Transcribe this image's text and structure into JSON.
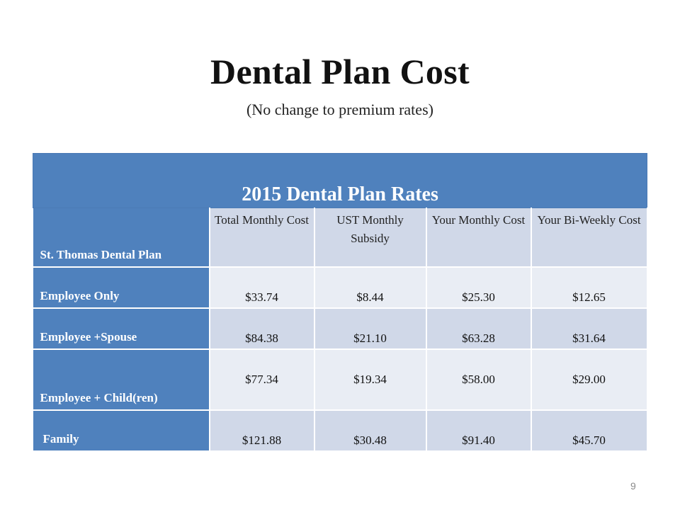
{
  "slide": {
    "title": "Dental Plan Cost",
    "subtitle": "(No change to premium rates)",
    "page_number": "9"
  },
  "table": {
    "banner": "2015 Dental Plan Rates",
    "corner_label": "St. Thomas Dental Plan",
    "columns": [
      "Total Monthly Cost",
      "UST Monthly Subsidy",
      "Your Monthly Cost",
      "Your Bi-Weekly Cost"
    ],
    "rows": [
      {
        "label": "Employee Only",
        "values": [
          "$33.74",
          "$8.44",
          "$25.30",
          "$12.65"
        ]
      },
      {
        "label": "Employee +Spouse",
        "values": [
          "$84.38",
          "$21.10",
          "$63.28",
          "$31.64"
        ]
      },
      {
        "label": "Employee + Child(ren)",
        "values": [
          "$77.34",
          "$19.34",
          "$58.00",
          "$29.00"
        ]
      },
      {
        "label": "Family",
        "values": [
          "$121.88",
          "$30.48",
          "$91.40",
          "$45.70"
        ]
      }
    ]
  },
  "colors": {
    "header_blue": "#4f81bd",
    "shade_dark": "#d0d8e8",
    "shade_light": "#e9edf4"
  }
}
